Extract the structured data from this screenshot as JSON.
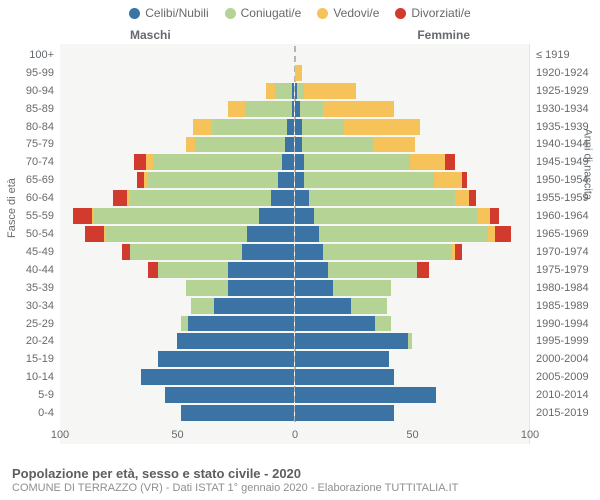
{
  "legend": {
    "items": [
      {
        "label": "Celibi/Nubili",
        "color": "#3b73a5"
      },
      {
        "label": "Coniugati/e",
        "color": "#b6d396"
      },
      {
        "label": "Vedovi/e",
        "color": "#f5c35a"
      },
      {
        "label": "Divorziati/e",
        "color": "#d23a2e"
      }
    ]
  },
  "sexLabels": {
    "male": "Maschi",
    "female": "Femmine"
  },
  "axisTitles": {
    "left": "Fasce di età",
    "right": "Anni di nascita"
  },
  "footer": {
    "title": "Popolazione per età, sesso e stato civile - 2020",
    "sub": "COMUNE DI TERRAZZO (VR) - Dati ISTAT 1° gennaio 2020 - Elaborazione TUTTITALIA.IT"
  },
  "chart": {
    "type": "population-pyramid",
    "background_color": "#f6f6f4",
    "grid_color": "#e5e5e2",
    "centerline_color": "#b5b5b5",
    "label_color": "#666a6d",
    "label_fontsize": 11,
    "legend_fontsize": 12,
    "xmax": 100,
    "xticks": [
      100,
      50,
      0,
      50,
      100
    ],
    "categoryColors": {
      "celibi": "#3b73a5",
      "coniugati": "#b6d396",
      "vedovi": "#f5c35a",
      "divorziati": "#d23a2e"
    },
    "rows": [
      {
        "age": "100+",
        "birth": "≤ 1919",
        "m": {
          "celibi": 0,
          "coniugati": 0,
          "vedovi": 0,
          "divorziati": 0
        },
        "f": {
          "celibi": 0,
          "coniugati": 0,
          "vedovi": 0,
          "divorziati": 0
        }
      },
      {
        "age": "95-99",
        "birth": "1920-1924",
        "m": {
          "celibi": 0,
          "coniugati": 0,
          "vedovi": 0,
          "divorziati": 0
        },
        "f": {
          "celibi": 0,
          "coniugati": 0,
          "vedovi": 3,
          "divorziati": 0
        }
      },
      {
        "age": "90-94",
        "birth": "1925-1929",
        "m": {
          "celibi": 1,
          "coniugati": 7,
          "vedovi": 4,
          "divorziati": 0
        },
        "f": {
          "celibi": 1,
          "coniugati": 3,
          "vedovi": 22,
          "divorziati": 0
        }
      },
      {
        "age": "85-89",
        "birth": "1930-1934",
        "m": {
          "celibi": 1,
          "coniugati": 20,
          "vedovi": 7,
          "divorziati": 0
        },
        "f": {
          "celibi": 2,
          "coniugati": 10,
          "vedovi": 30,
          "divorziati": 0
        }
      },
      {
        "age": "80-84",
        "birth": "1935-1939",
        "m": {
          "celibi": 3,
          "coniugati": 32,
          "vedovi": 8,
          "divorziati": 0
        },
        "f": {
          "celibi": 3,
          "coniugati": 18,
          "vedovi": 32,
          "divorziati": 0
        }
      },
      {
        "age": "75-79",
        "birth": "1940-1944",
        "m": {
          "celibi": 4,
          "coniugati": 38,
          "vedovi": 4,
          "divorziati": 0
        },
        "f": {
          "celibi": 3,
          "coniugati": 30,
          "vedovi": 18,
          "divorziati": 0
        }
      },
      {
        "age": "70-74",
        "birth": "1945-1949",
        "m": {
          "celibi": 5,
          "coniugati": 55,
          "vedovi": 3,
          "divorziati": 5
        },
        "f": {
          "celibi": 4,
          "coniugati": 45,
          "vedovi": 15,
          "divorziati": 4
        }
      },
      {
        "age": "65-69",
        "birth": "1950-1954",
        "m": {
          "celibi": 7,
          "coniugati": 55,
          "vedovi": 2,
          "divorziati": 3
        },
        "f": {
          "celibi": 4,
          "coniugati": 55,
          "vedovi": 12,
          "divorziati": 2
        }
      },
      {
        "age": "60-64",
        "birth": "1955-1959",
        "m": {
          "celibi": 10,
          "coniugati": 60,
          "vedovi": 1,
          "divorziati": 6
        },
        "f": {
          "celibi": 6,
          "coniugati": 62,
          "vedovi": 6,
          "divorziati": 3
        }
      },
      {
        "age": "55-59",
        "birth": "1960-1964",
        "m": {
          "celibi": 15,
          "coniugati": 70,
          "vedovi": 1,
          "divorziati": 8
        },
        "f": {
          "celibi": 8,
          "coniugati": 70,
          "vedovi": 5,
          "divorziati": 4
        }
      },
      {
        "age": "50-54",
        "birth": "1965-1969",
        "m": {
          "celibi": 20,
          "coniugati": 60,
          "vedovi": 1,
          "divorziati": 8
        },
        "f": {
          "celibi": 10,
          "coniugati": 72,
          "vedovi": 3,
          "divorziati": 7
        }
      },
      {
        "age": "45-49",
        "birth": "1970-1974",
        "m": {
          "celibi": 22,
          "coniugati": 48,
          "vedovi": 0,
          "divorziati": 3
        },
        "f": {
          "celibi": 12,
          "coniugati": 55,
          "vedovi": 1,
          "divorziati": 3
        }
      },
      {
        "age": "40-44",
        "birth": "1975-1979",
        "m": {
          "celibi": 28,
          "coniugati": 30,
          "vedovi": 0,
          "divorziati": 4
        },
        "f": {
          "celibi": 14,
          "coniugati": 38,
          "vedovi": 0,
          "divorziati": 5
        }
      },
      {
        "age": "35-39",
        "birth": "1980-1984",
        "m": {
          "celibi": 28,
          "coniugati": 18,
          "vedovi": 0,
          "divorziati": 0
        },
        "f": {
          "celibi": 16,
          "coniugati": 25,
          "vedovi": 0,
          "divorziati": 0
        }
      },
      {
        "age": "30-34",
        "birth": "1985-1989",
        "m": {
          "celibi": 34,
          "coniugati": 10,
          "vedovi": 0,
          "divorziati": 0
        },
        "f": {
          "celibi": 24,
          "coniugati": 15,
          "vedovi": 0,
          "divorziati": 0
        }
      },
      {
        "age": "25-29",
        "birth": "1990-1994",
        "m": {
          "celibi": 45,
          "coniugati": 3,
          "vedovi": 0,
          "divorziati": 0
        },
        "f": {
          "celibi": 34,
          "coniugati": 7,
          "vedovi": 0,
          "divorziati": 0
        }
      },
      {
        "age": "20-24",
        "birth": "1995-1999",
        "m": {
          "celibi": 50,
          "coniugati": 0,
          "vedovi": 0,
          "divorziati": 0
        },
        "f": {
          "celibi": 48,
          "coniugati": 2,
          "vedovi": 0,
          "divorziati": 0
        }
      },
      {
        "age": "15-19",
        "birth": "2000-2004",
        "m": {
          "celibi": 58,
          "coniugati": 0,
          "vedovi": 0,
          "divorziati": 0
        },
        "f": {
          "celibi": 40,
          "coniugati": 0,
          "vedovi": 0,
          "divorziati": 0
        }
      },
      {
        "age": "10-14",
        "birth": "2005-2009",
        "m": {
          "celibi": 65,
          "coniugati": 0,
          "vedovi": 0,
          "divorziati": 0
        },
        "f": {
          "celibi": 42,
          "coniugati": 0,
          "vedovi": 0,
          "divorziati": 0
        }
      },
      {
        "age": "5-9",
        "birth": "2010-2014",
        "m": {
          "celibi": 55,
          "coniugati": 0,
          "vedovi": 0,
          "divorziati": 0
        },
        "f": {
          "celibi": 60,
          "coniugati": 0,
          "vedovi": 0,
          "divorziati": 0
        }
      },
      {
        "age": "0-4",
        "birth": "2015-2019",
        "m": {
          "celibi": 48,
          "coniugati": 0,
          "vedovi": 0,
          "divorziati": 0
        },
        "f": {
          "celibi": 42,
          "coniugati": 0,
          "vedovi": 0,
          "divorziati": 0
        }
      }
    ]
  }
}
